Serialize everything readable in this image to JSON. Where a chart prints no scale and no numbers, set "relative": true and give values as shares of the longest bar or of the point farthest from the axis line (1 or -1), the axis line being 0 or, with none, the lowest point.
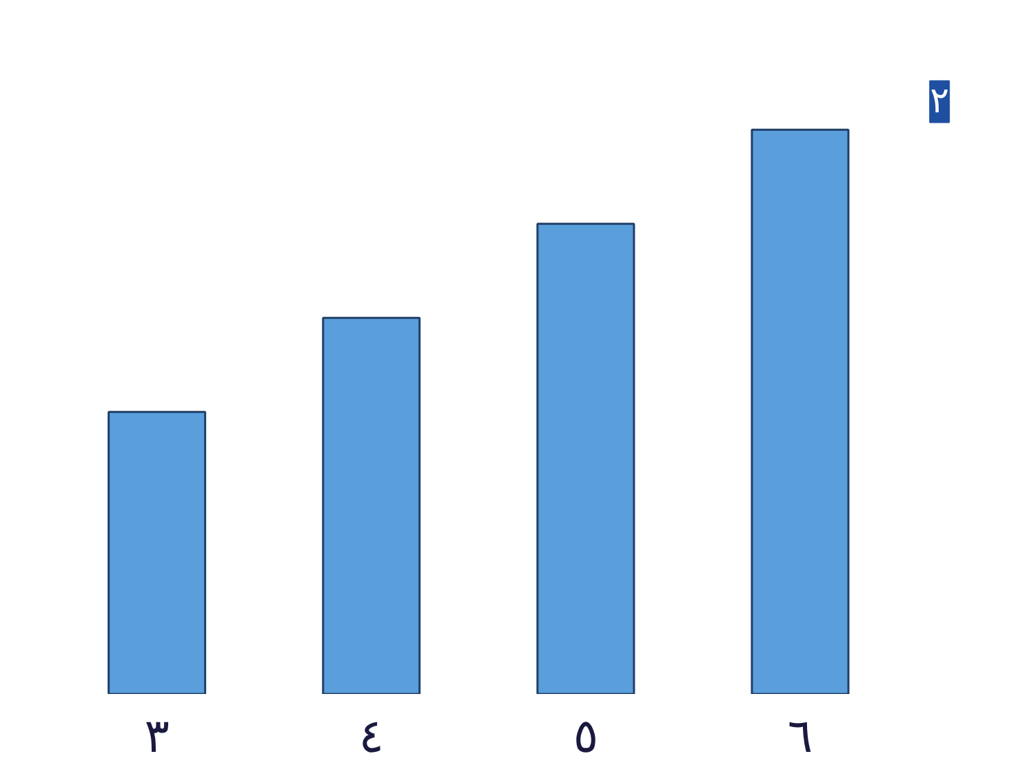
{
  "chart_data": {
    "type": "bar",
    "relative": true,
    "categories": [
      "٣",
      "٤",
      "٥",
      "٦"
    ],
    "values": [
      0.5,
      0.6667,
      0.8333,
      1
    ],
    "color": "#5a9fdc",
    "annotations": [
      "٢"
    ],
    "grid": false
  }
}
